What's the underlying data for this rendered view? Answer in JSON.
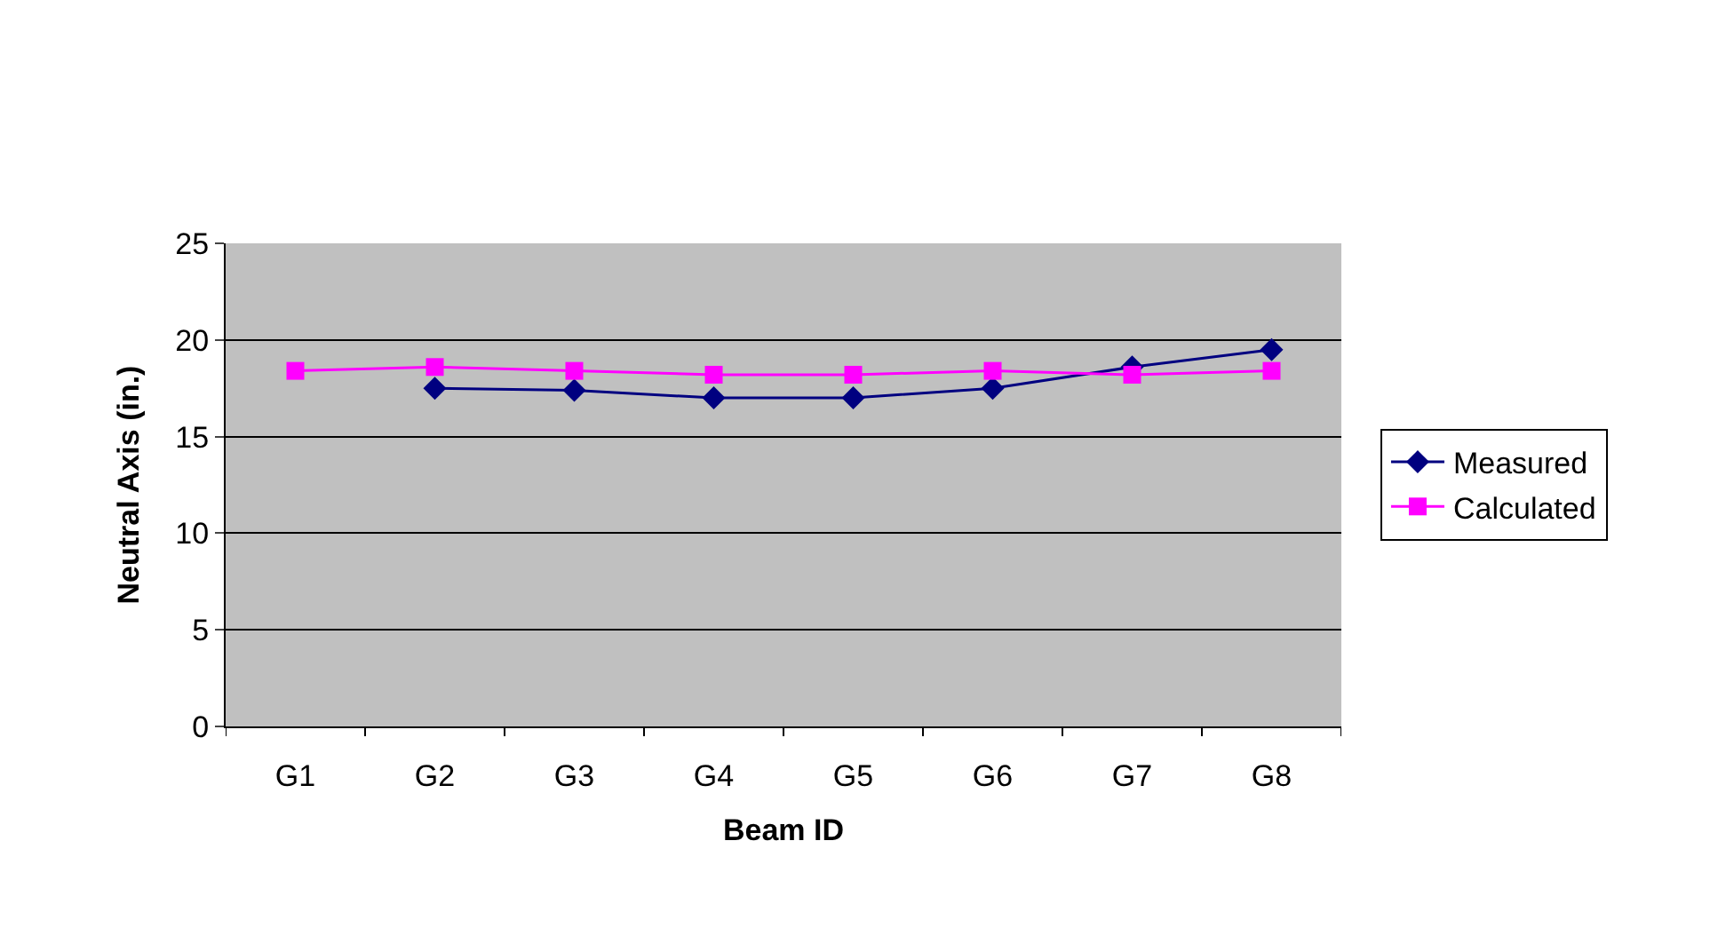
{
  "chart_data": {
    "type": "line",
    "xlabel": "Beam ID",
    "ylabel": "Neutral Axis (in.)",
    "categories": [
      "G1",
      "G2",
      "G3",
      "G4",
      "G5",
      "G6",
      "G7",
      "G8"
    ],
    "series": [
      {
        "name": "Measured",
        "color": "#000080",
        "marker": "diamond",
        "values": [
          null,
          17.5,
          17.4,
          17.0,
          17.0,
          17.5,
          18.6,
          19.5
        ]
      },
      {
        "name": "Calculated",
        "color": "#ff00ff",
        "marker": "square",
        "values": [
          18.4,
          18.6,
          18.4,
          18.2,
          18.2,
          18.4,
          18.2,
          18.4
        ]
      }
    ],
    "ylim": [
      0,
      25
    ],
    "yticks": [
      0,
      5,
      10,
      15,
      20,
      25
    ],
    "grid": "y",
    "legend": "right"
  }
}
